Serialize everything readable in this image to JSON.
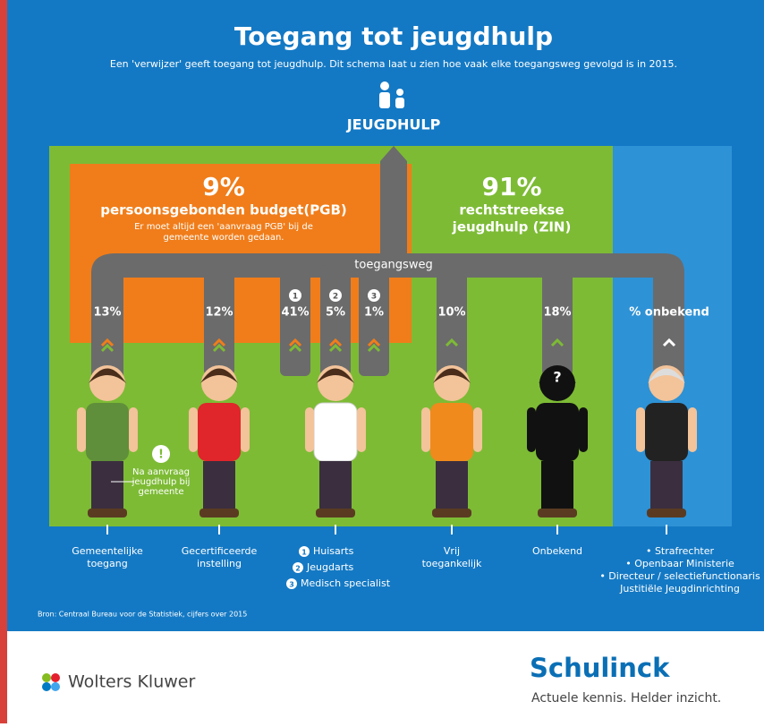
{
  "header": {
    "title": "Toegang tot jeugdhulp",
    "subtitle": "Een 'verwijzer' geeft toegang tot jeugdhulp. Dit schema laat u zien hoe vaak elke toegangsweg gevolgd is in 2015.",
    "label": "JEUGDHULP"
  },
  "pgb": {
    "percent": "9%",
    "title": "persoonsgebonden budget(PGB)",
    "note": [
      "Er moet altijd een 'aanvraag PGB' bij de",
      "gemeente worden gedaan."
    ]
  },
  "zin": {
    "percent": "91%",
    "lines": [
      "rechtstreekse",
      "jeugdhulp (ZIN)"
    ]
  },
  "route_label": "toegangsweg",
  "routes": [
    {
      "percent": "13%"
    },
    {
      "percent": "12%"
    },
    {
      "number": "1",
      "percent": "41%"
    },
    {
      "number": "2",
      "percent": "5%"
    },
    {
      "number": "3",
      "percent": "1%"
    },
    {
      "percent": "10%"
    },
    {
      "percent": "18%"
    },
    {
      "percent": "% onbekend"
    }
  ],
  "note": {
    "icon": "!",
    "lines": [
      "Na aanvraag",
      "jeugdhulp bij",
      "gemeente"
    ]
  },
  "unknown_mark": "?",
  "referrers": [
    {
      "lines": [
        "Gemeentelijke",
        "toegang"
      ]
    },
    {
      "lines": [
        "Gecertificeerde",
        "instelling"
      ]
    },
    {
      "items": [
        {
          "number": "1",
          "text": "Huisarts"
        },
        {
          "number": "2",
          "text": "Jeugdarts"
        },
        {
          "number": "3",
          "text": "Medisch specialist"
        }
      ]
    },
    {
      "lines": [
        "Vrij",
        "toegankelijk"
      ]
    },
    {
      "lines": [
        "Onbekend"
      ]
    },
    {
      "lines": [
        "• Strafrechter",
        "• Openbaar Ministerie",
        "• Directeur / selectiefunctionaris",
        "Justitiële Jeugdinrichting"
      ]
    }
  ],
  "source": "Bron: Centraal Bureau voor de Statistiek, cijfers over 2015",
  "footer": {
    "publisher": "Wolters Kluwer",
    "brand": "Schulinck",
    "tagline": "Actuele kennis. Helder inzicht."
  }
}
